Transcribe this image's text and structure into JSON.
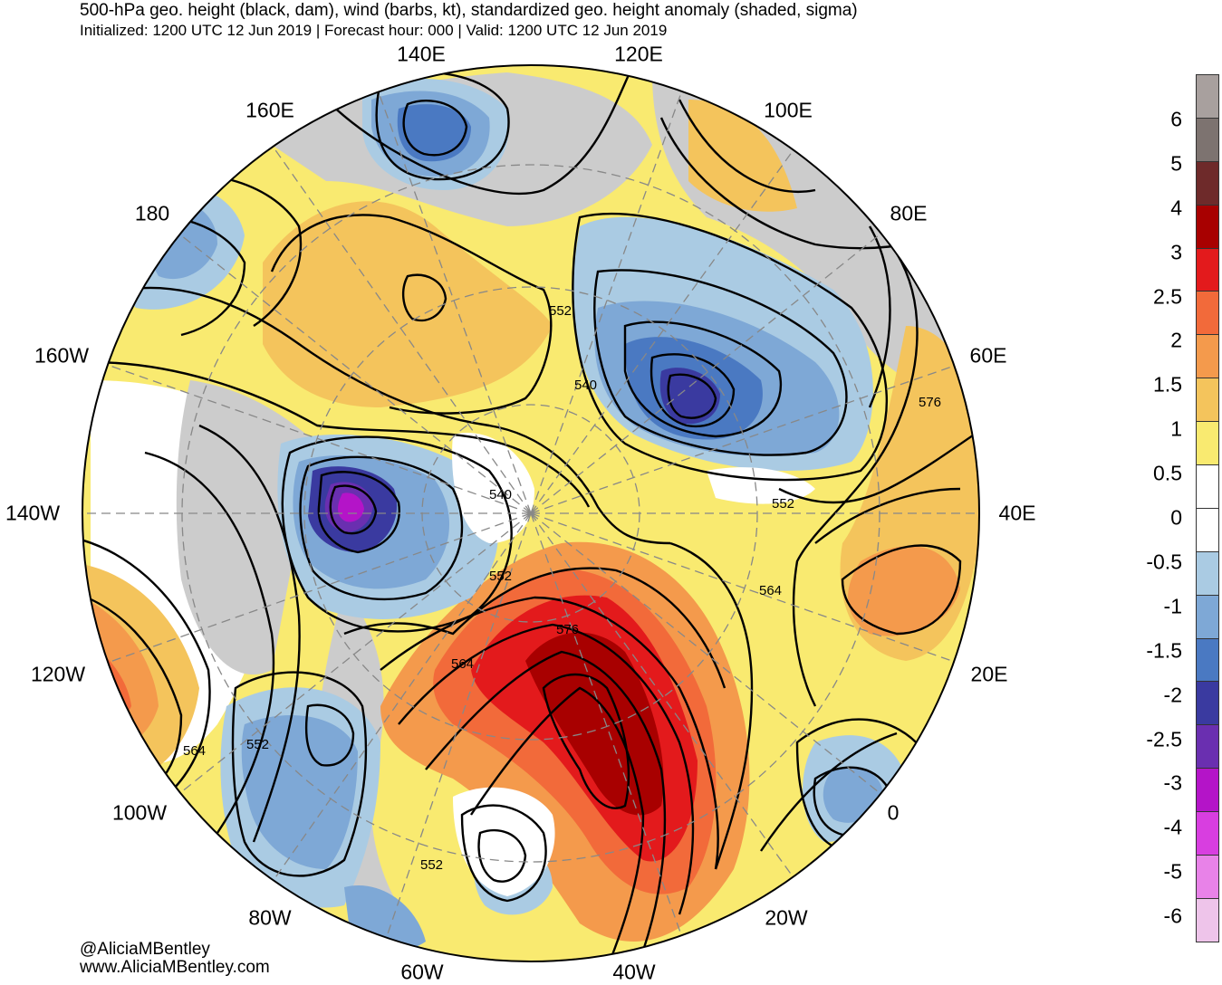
{
  "title": {
    "line1": "500-hPa geo. height (black, dam), wind (barbs, kt), standardized geo. height anomaly (shaded, sigma)",
    "line2": "Initialized: 1200 UTC 12 Jun 2019 | Forecast hour: 000 | Valid: 1200 UTC 12 Jun 2019"
  },
  "longitude_labels": [
    "140E",
    "120E",
    "160E",
    "100E",
    "180",
    "80E",
    "160W",
    "60E",
    "140W",
    "40E",
    "120W",
    "20E",
    "100W",
    "0",
    "80W",
    "20W",
    "60W",
    "40W"
  ],
  "contour_labels": [
    "552",
    "540",
    "540",
    "552",
    "552",
    "564",
    "576",
    "564",
    "552",
    "564",
    "552",
    "576",
    "552"
  ],
  "colorbar": {
    "labels": [
      "6",
      "5",
      "4",
      "3",
      "2.5",
      "2",
      "1.5",
      "1",
      "0.5",
      "0",
      "-0.5",
      "-1",
      "-1.5",
      "-2",
      "-2.5",
      "-3",
      "-4",
      "-5",
      "-6"
    ],
    "colors": [
      "#a8a09e",
      "#7d7370",
      "#6e2a2a",
      "#a80000",
      "#e31a1c",
      "#f26a3a",
      "#f49a4c",
      "#f4c45c",
      "#f9ea70",
      "#ffffff",
      "#ffffff",
      "#aacbe3",
      "#7ea8d6",
      "#4a79c2",
      "#3a3aa0",
      "#6a2fb0",
      "#b414c8",
      "#d83ee0",
      "#e882e8",
      "#eec4ea"
    ]
  },
  "credits": {
    "handle": "@AliciaMBentley",
    "site": "www.AliciaMBentley.com"
  }
}
